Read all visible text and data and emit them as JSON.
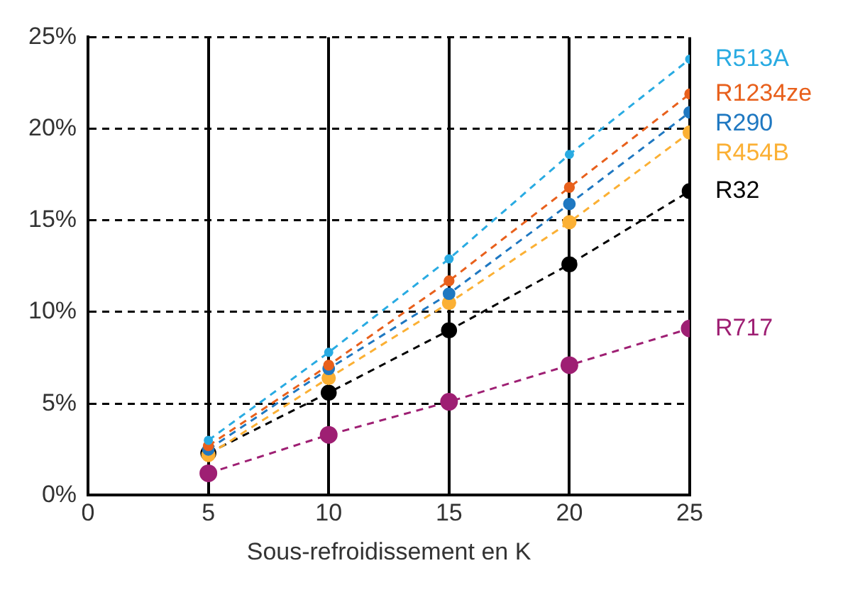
{
  "chart_data": {
    "type": "line",
    "xlabel": "Sous-refroidissement en K",
    "x": [
      5,
      10,
      15,
      20,
      25
    ],
    "series": [
      {
        "name": "R513A",
        "color": "#29abe2",
        "values": [
          3.0,
          7.8,
          12.9,
          18.6,
          23.8
        ]
      },
      {
        "name": "R1234ze",
        "color": "#e8601c",
        "values": [
          2.7,
          7.1,
          11.7,
          16.8,
          21.9
        ]
      },
      {
        "name": "R290",
        "color": "#1f78c1",
        "values": [
          2.5,
          6.9,
          11.0,
          15.9,
          20.9
        ]
      },
      {
        "name": "R454B",
        "color": "#fbb034",
        "values": [
          2.2,
          6.4,
          10.5,
          14.9,
          19.8
        ]
      },
      {
        "name": "R32",
        "color": "#000000",
        "values": [
          2.3,
          5.6,
          9.0,
          12.6,
          16.6
        ]
      },
      {
        "name": "R717",
        "color": "#9e1f73",
        "values": [
          1.2,
          3.3,
          5.1,
          7.1,
          9.1
        ]
      }
    ],
    "xlim": [
      0,
      25
    ],
    "xticks": [
      0,
      5,
      10,
      15,
      20,
      25
    ],
    "ylim": [
      0,
      25
    ],
    "yticks": [
      {
        "value": 0,
        "label": "0%"
      },
      {
        "value": 5,
        "label": "5%"
      },
      {
        "value": 10,
        "label": "10%"
      },
      {
        "value": 15,
        "label": "15%"
      },
      {
        "value": 20,
        "label": "20%"
      },
      {
        "value": 25,
        "label": "25%"
      }
    ],
    "grid": true,
    "legend": false,
    "marker": "circle",
    "line_style": "dashed"
  }
}
